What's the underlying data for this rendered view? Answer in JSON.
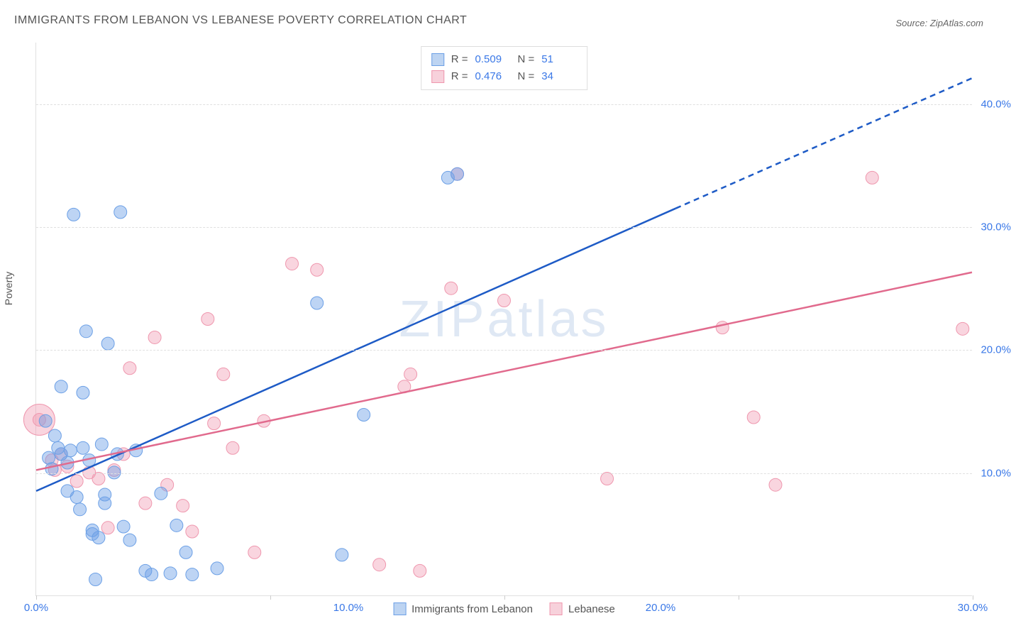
{
  "title": "IMMIGRANTS FROM LEBANON VS LEBANESE POVERTY CORRELATION CHART",
  "source": "Source: ZipAtlas.com",
  "ylabel": "Poverty",
  "watermark": "ZIPatlas",
  "axes": {
    "xlim": [
      0,
      30
    ],
    "ylim": [
      0,
      45
    ],
    "xticks": [
      0,
      10,
      20,
      30
    ],
    "xtick_labels": [
      "0.0%",
      "10.0%",
      "20.0%",
      "30.0%"
    ],
    "xtick_marks": [
      0,
      7.5,
      15,
      22.5,
      30
    ],
    "yticks": [
      10,
      20,
      30,
      40
    ],
    "ytick_labels": [
      "10.0%",
      "20.0%",
      "30.0%",
      "40.0%"
    ],
    "grid_color": "#e0e0e0",
    "tick_color": "#3a78e7",
    "label_color": "#555555"
  },
  "series": [
    {
      "name": "Immigrants from Lebanon",
      "color_fill": "rgba(108,160,230,0.45)",
      "color_stroke": "#6ca0e6",
      "swatch_fill": "#bdd4f2",
      "swatch_border": "#6ca0e6",
      "r_value": "0.509",
      "n_value": "51",
      "marker_radius": 9,
      "points": [
        [
          0.3,
          14.2
        ],
        [
          0.4,
          11.2
        ],
        [
          0.5,
          10.3
        ],
        [
          0.6,
          13.0
        ],
        [
          0.7,
          12.0
        ],
        [
          0.8,
          11.5
        ],
        [
          0.8,
          17.0
        ],
        [
          1.0,
          10.8
        ],
        [
          1.0,
          8.5
        ],
        [
          1.1,
          11.8
        ],
        [
          1.2,
          31.0
        ],
        [
          1.3,
          8.0
        ],
        [
          1.4,
          7.0
        ],
        [
          1.5,
          12.0
        ],
        [
          1.5,
          16.5
        ],
        [
          1.6,
          21.5
        ],
        [
          1.7,
          11.0
        ],
        [
          1.8,
          5.3
        ],
        [
          1.8,
          5.0
        ],
        [
          1.9,
          1.3
        ],
        [
          2.0,
          4.7
        ],
        [
          2.1,
          12.3
        ],
        [
          2.2,
          8.2
        ],
        [
          2.2,
          7.5
        ],
        [
          2.3,
          20.5
        ],
        [
          2.5,
          10.0
        ],
        [
          2.6,
          11.5
        ],
        [
          2.7,
          31.2
        ],
        [
          2.8,
          5.6
        ],
        [
          3.0,
          4.5
        ],
        [
          3.2,
          11.8
        ],
        [
          3.5,
          2.0
        ],
        [
          3.7,
          1.7
        ],
        [
          4.0,
          8.3
        ],
        [
          4.3,
          1.8
        ],
        [
          4.5,
          5.7
        ],
        [
          4.8,
          3.5
        ],
        [
          5.0,
          1.7
        ],
        [
          5.8,
          2.2
        ],
        [
          9.0,
          23.8
        ],
        [
          9.8,
          3.3
        ],
        [
          10.5,
          14.7
        ],
        [
          13.2,
          34.0
        ],
        [
          13.5,
          34.3
        ]
      ],
      "trendline": {
        "solid": [
          [
            0,
            8.5
          ],
          [
            20.5,
            31.5
          ]
        ],
        "dashed": [
          [
            20.5,
            31.5
          ],
          [
            30,
            42.1
          ]
        ],
        "stroke": "#1e5bc6",
        "width": 2.5
      }
    },
    {
      "name": "Lebanese",
      "color_fill": "rgba(240,150,175,0.40)",
      "color_stroke": "#ef97ae",
      "swatch_fill": "#f7d1db",
      "swatch_border": "#ef97ae",
      "r_value": "0.476",
      "n_value": "34",
      "marker_radius": 9,
      "points": [
        [
          0.1,
          14.3
        ],
        [
          0.5,
          11.0
        ],
        [
          0.6,
          10.2
        ],
        [
          0.8,
          11.5
        ],
        [
          1.0,
          10.5
        ],
        [
          1.3,
          9.3
        ],
        [
          1.7,
          10.0
        ],
        [
          2.0,
          9.5
        ],
        [
          2.3,
          5.5
        ],
        [
          2.5,
          10.2
        ],
        [
          2.8,
          11.5
        ],
        [
          3.0,
          18.5
        ],
        [
          3.5,
          7.5
        ],
        [
          3.8,
          21.0
        ],
        [
          4.2,
          9.0
        ],
        [
          4.7,
          7.3
        ],
        [
          5.0,
          5.2
        ],
        [
          5.5,
          22.5
        ],
        [
          5.7,
          14.0
        ],
        [
          6.0,
          18.0
        ],
        [
          6.3,
          12.0
        ],
        [
          7.0,
          3.5
        ],
        [
          7.3,
          14.2
        ],
        [
          8.2,
          27.0
        ],
        [
          9.0,
          26.5
        ],
        [
          11.0,
          2.5
        ],
        [
          11.8,
          17.0
        ],
        [
          12.0,
          18.0
        ],
        [
          12.3,
          2.0
        ],
        [
          13.3,
          25.0
        ],
        [
          13.5,
          34.3
        ],
        [
          15.0,
          24.0
        ],
        [
          18.3,
          9.5
        ],
        [
          22.0,
          21.8
        ],
        [
          23.0,
          14.5
        ],
        [
          23.7,
          9.0
        ],
        [
          26.8,
          34.0
        ],
        [
          29.7,
          21.7
        ]
      ],
      "big_point": {
        "xy": [
          0.1,
          14.3
        ],
        "radius": 22
      },
      "trendline": {
        "solid": [
          [
            0,
            10.2
          ],
          [
            30,
            26.3
          ]
        ],
        "stroke": "#e16a8d",
        "width": 2.5
      }
    }
  ],
  "legend_top": {
    "r_label": "R =",
    "n_label": "N ="
  },
  "legend_bottom_label_a": "Immigrants from Lebanon",
  "legend_bottom_label_b": "Lebanese"
}
